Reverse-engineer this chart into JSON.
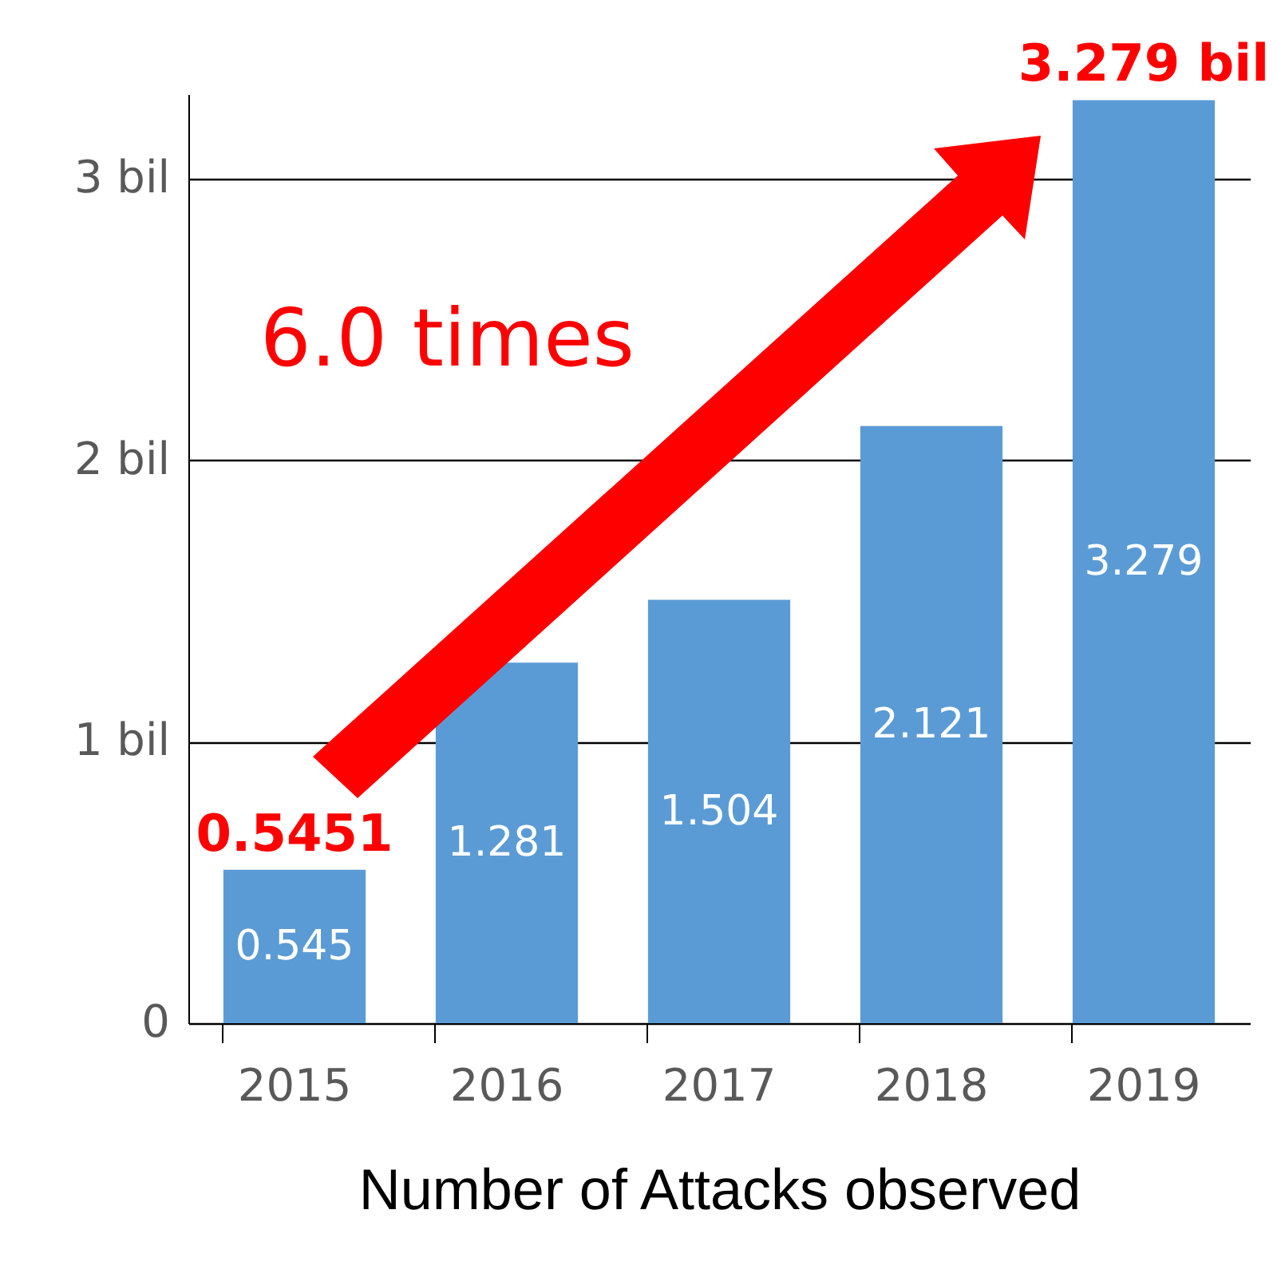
{
  "chart_data": {
    "type": "bar",
    "xlabel": "Number of Attacks observed",
    "categories": [
      "2015",
      "2016",
      "2017",
      "2018",
      "2019"
    ],
    "values": [
      0.545,
      1.281,
      1.504,
      2.121,
      3.279
    ],
    "color": "#5b9bd5",
    "data_labels": true,
    "ylim": [
      0,
      3.3
    ],
    "yticks": [
      0,
      {
        "value": 1,
        "label": "1 bil"
      },
      {
        "value": 2,
        "label": "2 bil"
      },
      {
        "value": 3,
        "label": "3 bil"
      }
    ],
    "grid": "y",
    "annotations": [
      {
        "text": "0.5451",
        "x": "2015",
        "y": 0.545
      },
      {
        "text": "3.279 bil",
        "x": "2019",
        "y": 3.279
      },
      "6.0 times"
    ]
  }
}
